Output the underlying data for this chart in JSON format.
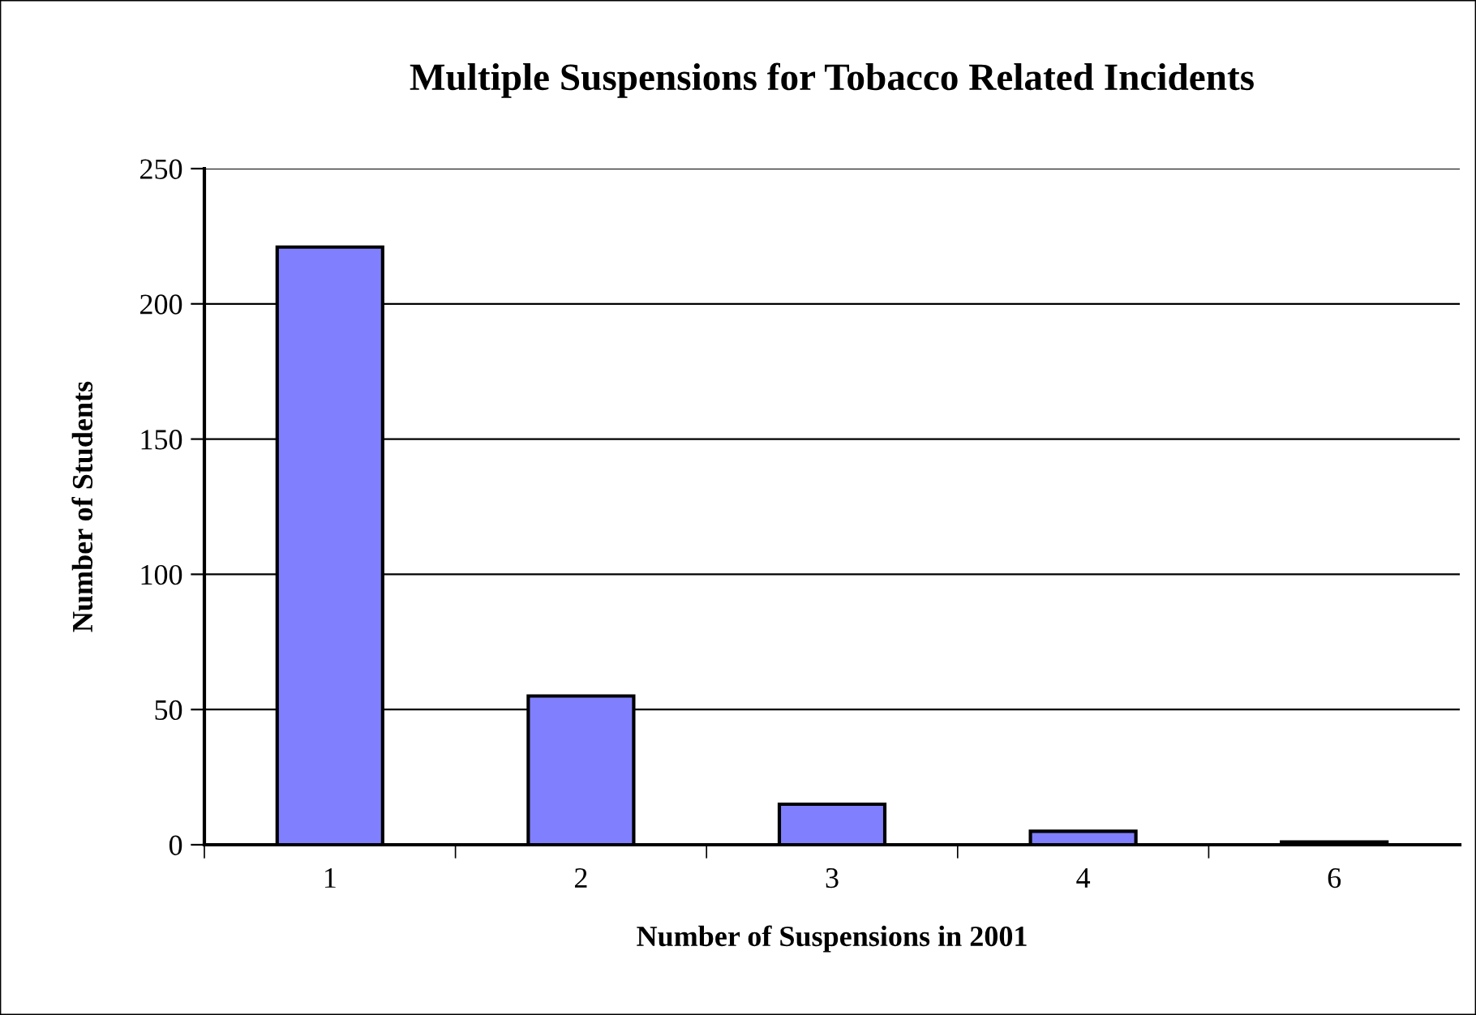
{
  "chart_data": {
    "type": "bar",
    "title": "Multiple Suspensions for Tobacco Related Incidents",
    "xlabel": "Number of Suspensions in 2001",
    "ylabel": "Number of Students",
    "categories": [
      "1",
      "2",
      "3",
      "4",
      "6"
    ],
    "values": [
      221,
      55,
      15,
      5,
      1
    ],
    "color": "#8080ff",
    "ylim": [
      0,
      250
    ],
    "yticks": [
      0,
      50,
      100,
      150,
      200,
      250
    ],
    "grid": "y",
    "legend": false
  }
}
